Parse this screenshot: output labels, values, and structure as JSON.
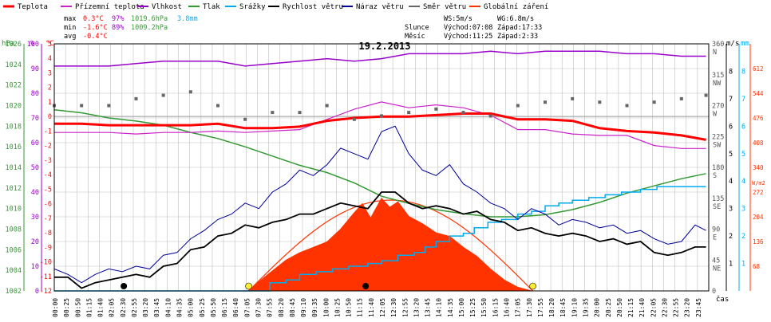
{
  "legend": [
    {
      "label": "Teplota",
      "color": "#ff0000"
    },
    {
      "label": "Přízemní teplota",
      "color": "#cc22cc"
    },
    {
      "label": "Vlhkost",
      "color": "#9900cc"
    },
    {
      "label": "Tlak",
      "color": "#339933"
    },
    {
      "label": "Srážky",
      "color": "#00aaee"
    },
    {
      "label": "Rychlost větru",
      "color": "#000000"
    },
    {
      "label": "Náraz větru",
      "color": "#000099"
    },
    {
      "label": "Směr větru",
      "color": "#666666"
    },
    {
      "label": "Globální záření",
      "color": "#ff3300"
    }
  ],
  "stats": {
    "max_label": "max",
    "min_label": "min",
    "avg_label": "avg",
    "max_temp": "0.3°C",
    "max_hum": "97%",
    "max_press": "1019.6hPa",
    "max_rain": "3.8mm",
    "min_temp": "-1.6°C",
    "min_hum": "89%",
    "min_press": "1009.2hPa",
    "avg_temp": "-0.4°C"
  },
  "wind_info": {
    "ws": "WS:5m/s",
    "wg": "WG:6.8m/s"
  },
  "sun_moon": {
    "sun_label": "Slunce",
    "sun_rise": "Východ:07:08",
    "sun_set": "Západ:17:33",
    "moon_label": "Měsíc",
    "moon_rise": "Východ:11:25",
    "moon_set": "Západ:2:33"
  },
  "chart_title": "19.2.2013",
  "unit_labels": {
    "hpa": "hPa",
    "pct": "%",
    "degc": "°C",
    "ms": "m/s",
    "mm": "mm",
    "wm2": "W/m2",
    "cas": "čas"
  },
  "colors": {
    "temp": "#ff0000",
    "ground": "#cc22cc",
    "humidity": "#9900cc",
    "pressure": "#339933",
    "rain": "#00aaee",
    "wind": "#000000",
    "gust": "#000099",
    "dir": "#666666",
    "solar": "#ff3300",
    "grid": "#bfbfbf"
  },
  "chart_data": {
    "type": "line",
    "title": "19.2.2013",
    "x_ticks": [
      "00:00",
      "00:25",
      "00:50",
      "01:15",
      "01:40",
      "02:05",
      "02:30",
      "02:55",
      "03:20",
      "03:45",
      "04:10",
      "04:35",
      "05:00",
      "05:25",
      "05:50",
      "06:15",
      "06:40",
      "07:05",
      "07:30",
      "07:55",
      "08:20",
      "08:45",
      "09:10",
      "09:35",
      "10:00",
      "10:25",
      "10:50",
      "11:15",
      "11:40",
      "12:05",
      "12:30",
      "12:55",
      "13:20",
      "13:45",
      "14:10",
      "14:35",
      "15:00",
      "15:25",
      "15:50",
      "16:15",
      "16:40",
      "17:05",
      "17:30",
      "17:55",
      "18:20",
      "18:45",
      "19:10",
      "19:35",
      "20:00",
      "20:25",
      "20:50",
      "21:15",
      "21:40",
      "22:05",
      "22:30",
      "22:55",
      "23:20",
      "23:45"
    ],
    "x_label": "čas",
    "x_range_hours": [
      0,
      24
    ],
    "axes": {
      "pressure_hPa": {
        "min": 1002,
        "max": 1026,
        "ticks": [
          1002,
          1004,
          1006,
          1008,
          1010,
          1012,
          1014,
          1016,
          1018,
          1020,
          1022,
          1024,
          1026
        ]
      },
      "humidity_pct": {
        "min": 0,
        "max": 100,
        "ticks": [
          0,
          10,
          20,
          30,
          40,
          50,
          60,
          70,
          80,
          90,
          100
        ]
      },
      "temperature_C": {
        "min": -12,
        "max": 5,
        "ticks": [
          5,
          4,
          3,
          2,
          1,
          0,
          -1,
          -2,
          -3,
          -4,
          -5,
          -6,
          -7,
          -8,
          -9,
          -10,
          -11,
          -12
        ]
      },
      "wind_dir_deg": {
        "min": 0,
        "max": 360,
        "ticks": [
          360,
          315,
          270,
          225,
          180,
          135,
          90,
          45,
          0
        ],
        "labels": [
          "N",
          "NW",
          "W",
          "SW",
          "S",
          "SE",
          "E",
          "NE",
          ""
        ]
      },
      "wind_ms": {
        "min": 0,
        "max": 9,
        "ticks": [
          1,
          2,
          3,
          4,
          5,
          6,
          7,
          8
        ]
      },
      "rain_mm": {
        "min": 0,
        "max": 9,
        "ticks": [
          1,
          2,
          3,
          4,
          5,
          6,
          7,
          8
        ]
      },
      "solar_Wm2": {
        "min": 0,
        "max": 680,
        "ticks": [
          68,
          136,
          204,
          272,
          340,
          408,
          476,
          544,
          612
        ]
      }
    },
    "series": [
      {
        "name": "Teplota",
        "unit": "°C",
        "x": [
          0,
          1,
          2,
          3,
          4,
          5,
          6,
          7,
          8,
          9,
          10,
          11,
          12,
          13,
          14,
          15,
          16,
          17,
          18,
          19,
          20,
          21,
          22,
          23,
          23.9
        ],
        "values": [
          -0.5,
          -0.5,
          -0.6,
          -0.6,
          -0.6,
          -0.6,
          -0.5,
          -0.8,
          -0.8,
          -0.7,
          -0.3,
          -0.1,
          0.0,
          0.0,
          0.1,
          0.2,
          0.2,
          -0.2,
          -0.2,
          -0.3,
          -0.8,
          -1.0,
          -1.1,
          -1.3,
          -1.6
        ]
      },
      {
        "name": "Přízemní teplota",
        "unit": "°C",
        "x": [
          0,
          1,
          2,
          3,
          4,
          5,
          6,
          7,
          8,
          9,
          10,
          11,
          12,
          13,
          14,
          15,
          16,
          17,
          18,
          19,
          20,
          21,
          22,
          23,
          23.9
        ],
        "values": [
          -1.1,
          -1.1,
          -1.1,
          -1.2,
          -1.1,
          -1.1,
          -1.0,
          -1.1,
          -1.0,
          -0.9,
          -0.2,
          0.5,
          1.0,
          0.6,
          0.8,
          0.6,
          0.1,
          -0.9,
          -0.9,
          -1.2,
          -1.3,
          -1.3,
          -2.0,
          -2.2,
          -2.2
        ]
      },
      {
        "name": "Vlhkost",
        "unit": "%",
        "x": [
          0,
          1,
          2,
          3,
          4,
          5,
          6,
          7,
          8,
          9,
          10,
          11,
          12,
          13,
          14,
          15,
          16,
          17,
          18,
          19,
          20,
          21,
          22,
          23,
          23.9
        ],
        "values": [
          91,
          91,
          91,
          92,
          93,
          93,
          93,
          91,
          92,
          93,
          94,
          93,
          94,
          96,
          96,
          96,
          97,
          96,
          97,
          97,
          97,
          96,
          96,
          95,
          95
        ]
      },
      {
        "name": "Tlak",
        "unit": "hPa",
        "x": [
          0,
          1,
          2,
          3,
          4,
          5,
          6,
          7,
          8,
          9,
          10,
          11,
          12,
          13,
          14,
          15,
          16,
          17,
          18,
          19,
          20,
          21,
          22,
          23,
          23.9
        ],
        "values": [
          1019.6,
          1019.3,
          1018.8,
          1018.5,
          1018.1,
          1017.4,
          1016.8,
          1016.0,
          1015.1,
          1014.2,
          1013.5,
          1012.5,
          1011.2,
          1010.5,
          1009.9,
          1009.5,
          1009.2,
          1009.2,
          1009.4,
          1009.9,
          1010.6,
          1011.5,
          1012.2,
          1012.9,
          1013.4
        ]
      },
      {
        "name": "Srážky",
        "unit": "mm",
        "x": [
          0,
          7.9,
          8.5,
          9.0,
          9.6,
          10.2,
          10.8,
          11.5,
          12.0,
          12.6,
          13.2,
          13.6,
          14.0,
          14.5,
          15.0,
          15.4,
          15.9,
          16.4,
          17.0,
          17.5,
          18.0,
          18.5,
          19.0,
          19.6,
          20.2,
          20.8,
          21.5,
          22.1,
          22.8,
          23.9
        ],
        "values": [
          0,
          0.3,
          0.4,
          0.6,
          0.7,
          0.8,
          0.9,
          1.0,
          1.1,
          1.3,
          1.4,
          1.6,
          1.8,
          2.0,
          2.1,
          2.3,
          2.5,
          2.6,
          2.8,
          2.9,
          3.1,
          3.2,
          3.3,
          3.4,
          3.5,
          3.6,
          3.7,
          3.8,
          3.8,
          3.8
        ]
      },
      {
        "name": "Rychlost větru",
        "unit": "m/s",
        "x": [
          0,
          0.5,
          1,
          1.5,
          2,
          2.5,
          3,
          3.5,
          4,
          4.5,
          5,
          5.5,
          6,
          6.5,
          7,
          7.5,
          8,
          8.5,
          9,
          9.5,
          10,
          10.5,
          11,
          11.5,
          12,
          12.5,
          13,
          13.5,
          14,
          14.5,
          15,
          15.5,
          16,
          16.5,
          17,
          17.5,
          18,
          18.5,
          19,
          19.5,
          20,
          20.5,
          21,
          21.5,
          22,
          22.5,
          23,
          23.5,
          23.9
        ],
        "values": [
          0.5,
          0.5,
          0.1,
          0.3,
          0.4,
          0.5,
          0.6,
          0.5,
          0.9,
          1.0,
          1.5,
          1.6,
          2.0,
          2.1,
          2.4,
          2.3,
          2.5,
          2.6,
          2.8,
          2.8,
          3.0,
          3.2,
          3.1,
          3.0,
          3.6,
          3.6,
          3.2,
          3.0,
          3.1,
          3.0,
          2.8,
          2.9,
          2.6,
          2.5,
          2.2,
          2.3,
          2.1,
          2.0,
          2.1,
          2.0,
          1.8,
          1.9,
          1.7,
          1.8,
          1.4,
          1.3,
          1.4,
          1.6,
          1.6
        ]
      },
      {
        "name": "Náraz větru",
        "unit": "m/s",
        "x": [
          0,
          0.5,
          1,
          1.5,
          2,
          2.5,
          3,
          3.5,
          4,
          4.5,
          5,
          5.5,
          6,
          6.5,
          7,
          7.5,
          8,
          8.5,
          9,
          9.5,
          10,
          10.5,
          11,
          11.5,
          12,
          12.5,
          13,
          13.5,
          14,
          14.5,
          15,
          15.5,
          16,
          16.5,
          17,
          17.5,
          18,
          18.5,
          19,
          19.5,
          20,
          20.5,
          21,
          21.5,
          22,
          22.5,
          23,
          23.5,
          23.9
        ],
        "values": [
          0.8,
          0.6,
          0.3,
          0.6,
          0.8,
          0.7,
          0.9,
          0.8,
          1.3,
          1.4,
          1.9,
          2.2,
          2.6,
          2.8,
          3.2,
          3.0,
          3.6,
          3.9,
          4.4,
          4.2,
          4.6,
          5.2,
          5.0,
          4.8,
          5.8,
          6.0,
          5.0,
          4.4,
          4.2,
          4.6,
          3.9,
          3.6,
          3.2,
          3.0,
          2.6,
          3.0,
          2.8,
          2.4,
          2.6,
          2.5,
          2.3,
          2.4,
          2.1,
          2.2,
          1.9,
          1.7,
          1.8,
          2.4,
          2.2
        ]
      },
      {
        "name": "Směr větru",
        "unit": "°",
        "x": [
          0,
          1,
          2,
          3,
          4,
          5,
          6,
          7,
          8,
          9,
          10,
          11,
          12,
          13,
          14,
          15,
          16,
          17,
          18,
          19,
          20,
          21,
          22,
          23,
          23.9
        ],
        "values": [
          270,
          270,
          270,
          280,
          285,
          290,
          270,
          250,
          260,
          260,
          270,
          250,
          255,
          260,
          265,
          260,
          255,
          270,
          275,
          280,
          275,
          270,
          275,
          280,
          285
        ]
      },
      {
        "name": "Globální záření",
        "unit": "W/m2",
        "x": [
          7.1,
          7.5,
          8,
          8.5,
          9,
          9.5,
          10,
          10.5,
          11,
          11.3,
          11.6,
          12,
          12.3,
          12.6,
          13,
          13.5,
          14,
          14.5,
          15,
          15.5,
          16,
          16.5,
          17,
          17.5
        ],
        "values": [
          0,
          25,
          55,
          85,
          105,
          120,
          135,
          170,
          215,
          240,
          200,
          255,
          230,
          245,
          205,
          185,
          160,
          150,
          120,
          95,
          60,
          30,
          10,
          0
        ]
      }
    ]
  }
}
